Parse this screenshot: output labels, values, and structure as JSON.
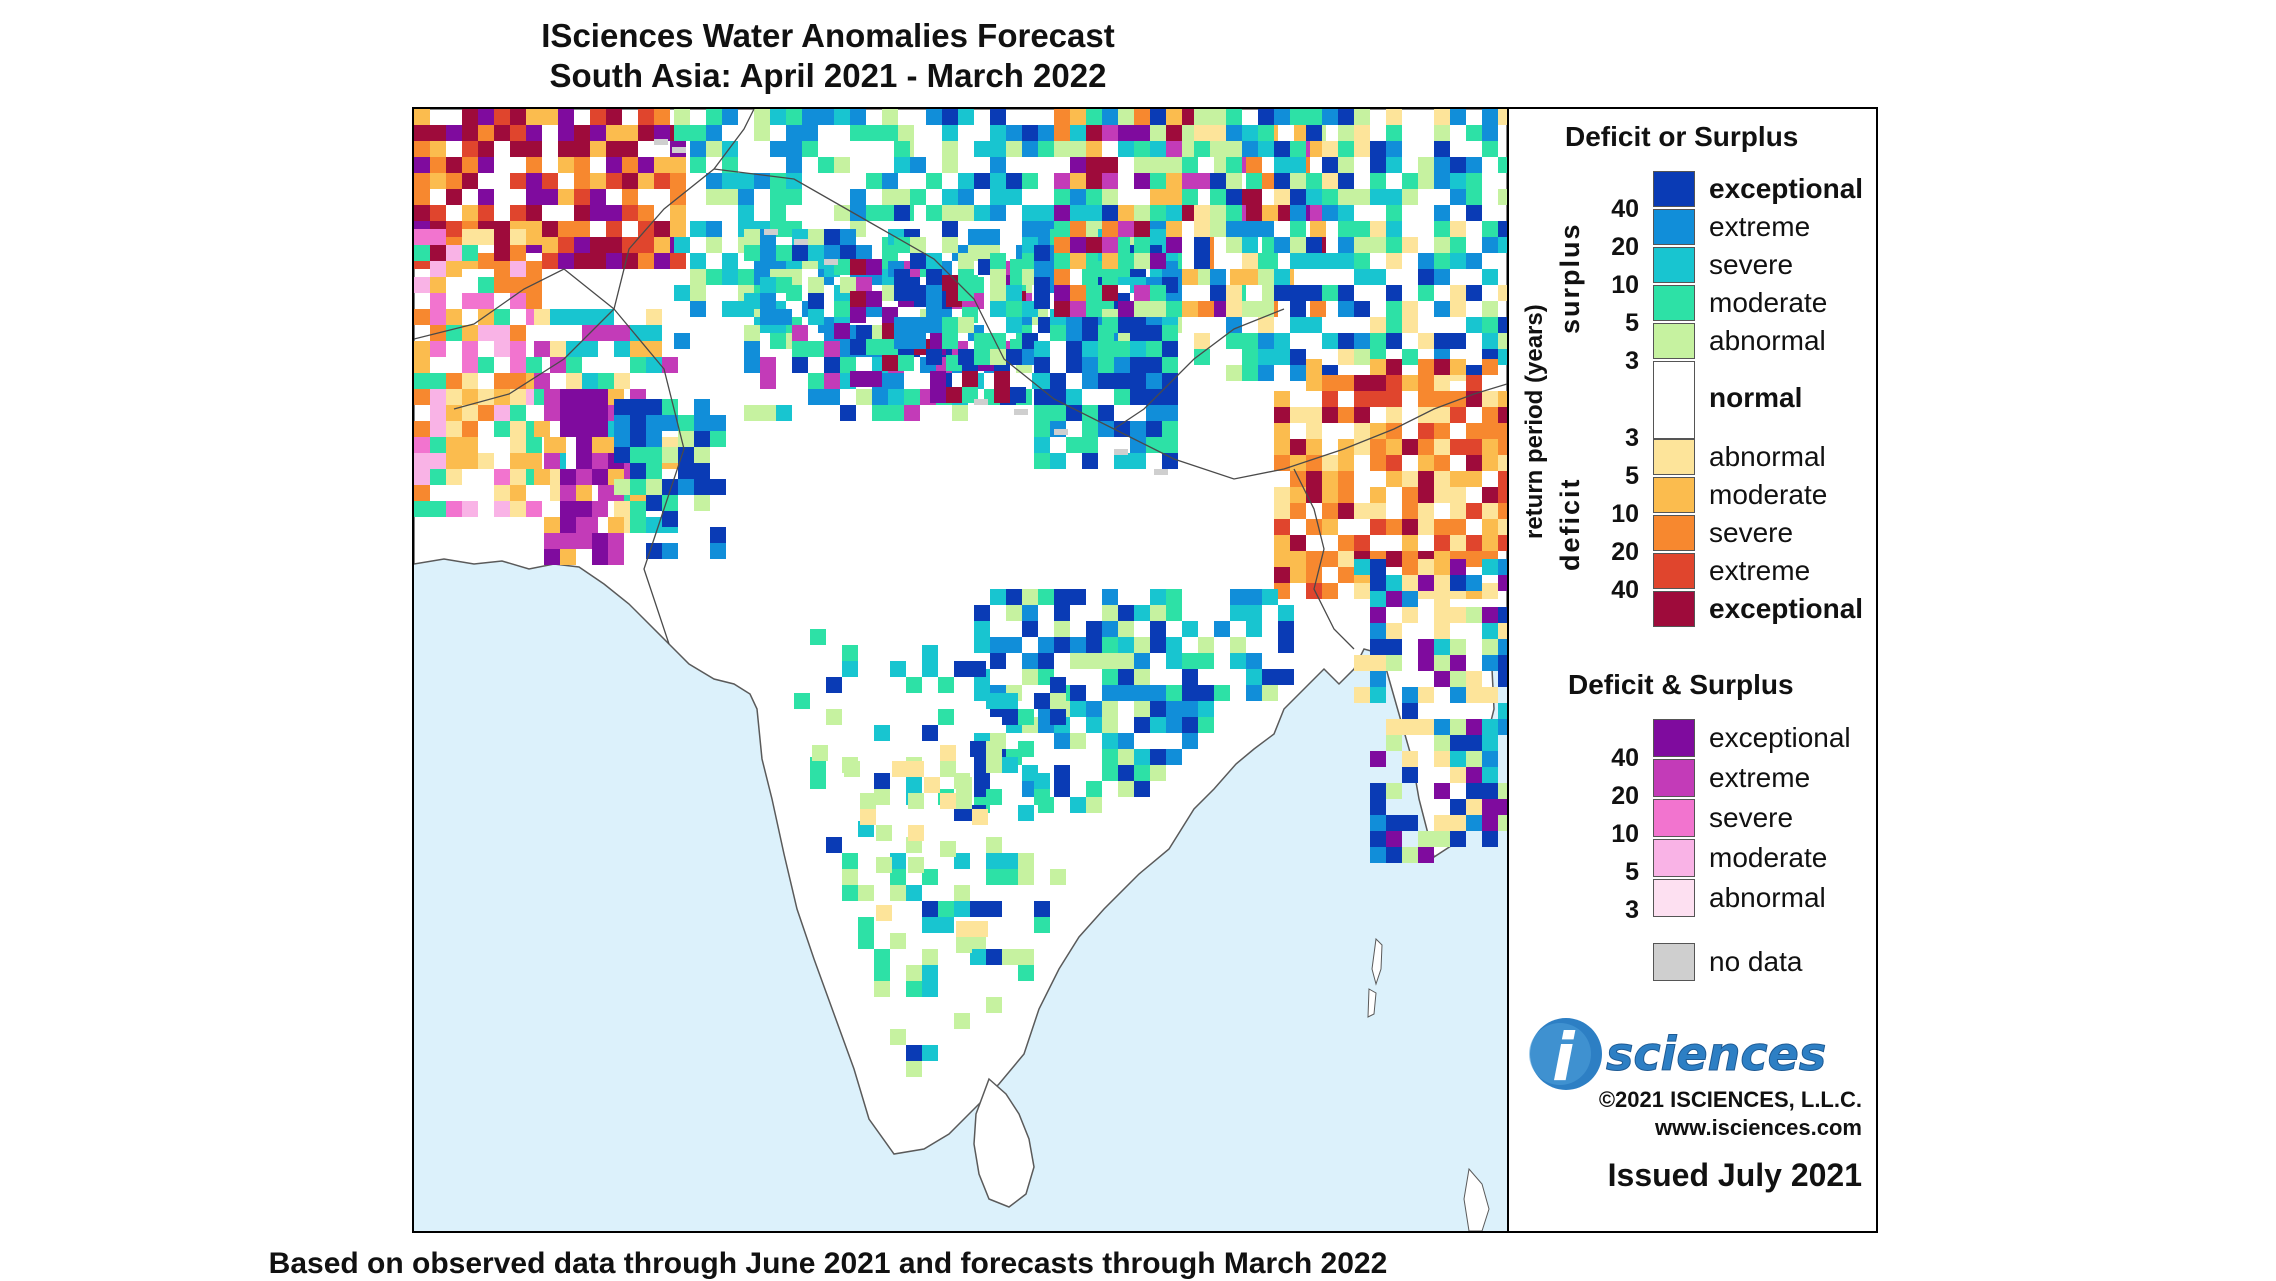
{
  "title": {
    "line1": "ISciences Water Anomalies Forecast",
    "line2": "South Asia: April 2021 - March 2022"
  },
  "footer": "Based on observed data through June 2021 and forecasts through March 2022",
  "legend": {
    "deficit_or_surplus": {
      "heading": "Deficit or Surplus",
      "axis_title": "return period (years)",
      "surplus_label": "surplus",
      "deficit_label": "deficit",
      "surplus": [
        {
          "label": "exceptional",
          "color": "#0a3bb5",
          "bold": true
        },
        {
          "label": "extreme",
          "color": "#118ed9",
          "bold": false
        },
        {
          "label": "severe",
          "color": "#18c5d0",
          "bold": false
        },
        {
          "label": "moderate",
          "color": "#2de1a6",
          "bold": false
        },
        {
          "label": "abnormal",
          "color": "#c6f2a0",
          "bold": false
        }
      ],
      "normal": {
        "label": "normal",
        "color": "#ffffff"
      },
      "deficit": [
        {
          "label": "abnormal",
          "color": "#fde49a",
          "bold": false
        },
        {
          "label": "moderate",
          "color": "#fbbc4e",
          "bold": false
        },
        {
          "label": "severe",
          "color": "#f7882f",
          "bold": false
        },
        {
          "label": "extreme",
          "color": "#e0452d",
          "bold": false
        },
        {
          "label": "exceptional",
          "color": "#9e0b3b",
          "bold": true
        }
      ],
      "surplus_ticks": [
        "40",
        "20",
        "10",
        "5",
        "3"
      ],
      "deficit_ticks": [
        "3",
        "5",
        "10",
        "20",
        "40"
      ]
    },
    "deficit_and_surplus": {
      "heading": "Deficit & Surplus",
      "items": [
        {
          "label": "exceptional",
          "color": "#7f0b9e"
        },
        {
          "label": "extreme",
          "color": "#c33bb8"
        },
        {
          "label": "severe",
          "color": "#f274cf"
        },
        {
          "label": "moderate",
          "color": "#f9b3e6"
        },
        {
          "label": "abnormal",
          "color": "#fde0f1"
        }
      ],
      "ticks": [
        "40",
        "20",
        "10",
        "5",
        "3"
      ]
    },
    "no_data": {
      "label": "no data",
      "color": "#cfcfcf"
    }
  },
  "branding": {
    "logo_i": "i",
    "logo_text": "sciences",
    "copyright": "©2021 ISCIENCES, L.L.C.",
    "website": "www.isciences.com",
    "issued": "Issued July 2021"
  },
  "colors": {
    "ocean": "#dcf1fb",
    "land": "#ffffff",
    "border": "#5a5a5a",
    "logo_blue": "#2d7fc4"
  }
}
